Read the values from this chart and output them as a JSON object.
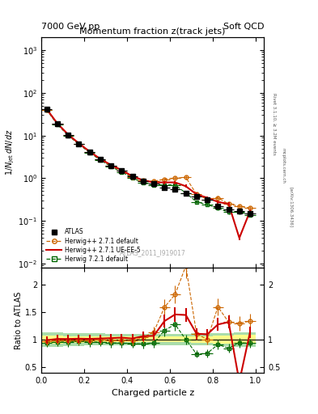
{
  "title_main": "Momentum fraction z(track jets)",
  "header_left": "7000 GeV pp",
  "header_right": "Soft QCD",
  "watermark": "ATLAS_2011_I919017",
  "ylabel_main": "1/N$_{jet}$ dN/dz",
  "ylabel_ratio": "Ratio to ATLAS",
  "xlabel": "Charged particle z",
  "right_label_top": "Rivet 3.1.10, ≥ 3.2M events",
  "right_label_bottom": "[arXiv:1306.3436]",
  "right_label_site": "mcplots.cern.ch",
  "ylim_main": [
    0.008,
    2000
  ],
  "ylim_ratio": [
    0.4,
    2.3
  ],
  "xlim": [
    0.0,
    1.04
  ],
  "atlas_x": [
    0.025,
    0.075,
    0.125,
    0.175,
    0.225,
    0.275,
    0.325,
    0.375,
    0.425,
    0.475,
    0.525,
    0.575,
    0.625,
    0.675,
    0.725,
    0.775,
    0.825,
    0.875,
    0.925,
    0.975
  ],
  "atlas_y": [
    42.0,
    19.0,
    10.5,
    6.5,
    4.2,
    2.8,
    2.0,
    1.5,
    1.1,
    0.85,
    0.75,
    0.6,
    0.55,
    0.45,
    0.38,
    0.32,
    0.22,
    0.19,
    0.17,
    0.15
  ],
  "atlas_yerr": [
    3.0,
    1.5,
    0.8,
    0.5,
    0.35,
    0.25,
    0.18,
    0.14,
    0.1,
    0.08,
    0.07,
    0.055,
    0.05,
    0.04,
    0.035,
    0.03,
    0.02,
    0.018,
    0.016,
    0.014
  ],
  "atlas_xerr": [
    0.025,
    0.025,
    0.025,
    0.025,
    0.025,
    0.025,
    0.025,
    0.025,
    0.025,
    0.025,
    0.025,
    0.025,
    0.025,
    0.025,
    0.025,
    0.025,
    0.025,
    0.025,
    0.025,
    0.025
  ],
  "hw271_x": [
    0.025,
    0.075,
    0.125,
    0.175,
    0.225,
    0.275,
    0.325,
    0.375,
    0.425,
    0.475,
    0.525,
    0.575,
    0.625,
    0.675,
    0.725,
    0.775,
    0.825,
    0.875,
    0.925,
    0.975
  ],
  "hw271_y": [
    40.5,
    18.8,
    10.3,
    6.4,
    4.15,
    2.78,
    1.98,
    1.48,
    1.08,
    0.88,
    0.85,
    0.95,
    1.0,
    1.05,
    0.42,
    0.32,
    0.35,
    0.25,
    0.22,
    0.2
  ],
  "hw271_yerr": [
    3.0,
    1.4,
    0.8,
    0.5,
    0.33,
    0.22,
    0.16,
    0.12,
    0.09,
    0.08,
    0.08,
    0.09,
    0.09,
    0.1,
    0.04,
    0.03,
    0.035,
    0.025,
    0.022,
    0.02
  ],
  "hw271ue_x": [
    0.025,
    0.075,
    0.125,
    0.175,
    0.225,
    0.275,
    0.325,
    0.375,
    0.425,
    0.475,
    0.525,
    0.575,
    0.625,
    0.675,
    0.725,
    0.775,
    0.825,
    0.875,
    0.925,
    0.975
  ],
  "hw271ue_y": [
    41.5,
    19.2,
    10.6,
    6.6,
    4.25,
    2.85,
    2.05,
    1.55,
    1.12,
    0.9,
    0.8,
    0.8,
    0.8,
    0.65,
    0.42,
    0.35,
    0.28,
    0.25,
    0.04,
    0.17
  ],
  "hw271ue_yerr": [
    2.8,
    1.3,
    0.75,
    0.45,
    0.32,
    0.21,
    0.15,
    0.11,
    0.085,
    0.075,
    0.065,
    0.07,
    0.07,
    0.055,
    0.038,
    0.032,
    0.026,
    0.022,
    0.004,
    0.016
  ],
  "hw721_x": [
    0.025,
    0.075,
    0.125,
    0.175,
    0.225,
    0.275,
    0.325,
    0.375,
    0.425,
    0.475,
    0.525,
    0.575,
    0.625,
    0.675,
    0.725,
    0.775,
    0.825,
    0.875,
    0.925,
    0.975
  ],
  "hw721_y": [
    39.5,
    18.2,
    10.0,
    6.3,
    4.0,
    2.68,
    1.88,
    1.4,
    1.02,
    0.78,
    0.7,
    0.7,
    0.7,
    0.45,
    0.28,
    0.24,
    0.2,
    0.16,
    0.16,
    0.14
  ],
  "hw721_yerr": [
    3.2,
    1.5,
    0.85,
    0.52,
    0.35,
    0.23,
    0.17,
    0.13,
    0.09,
    0.07,
    0.065,
    0.065,
    0.065,
    0.042,
    0.026,
    0.023,
    0.019,
    0.015,
    0.015,
    0.013
  ],
  "atlas_band_inner_y1": [
    0.93,
    0.93,
    0.94,
    0.94,
    0.95,
    0.95,
    0.95,
    0.95,
    0.95,
    0.95,
    0.95,
    0.95,
    0.95,
    0.95,
    0.94,
    0.94,
    0.93,
    0.93,
    0.92,
    0.92
  ],
  "atlas_band_inner_y2": [
    1.07,
    1.07,
    1.06,
    1.06,
    1.05,
    1.05,
    1.05,
    1.05,
    1.05,
    1.05,
    1.05,
    1.05,
    1.05,
    1.05,
    1.06,
    1.06,
    1.07,
    1.07,
    1.08,
    1.08
  ],
  "atlas_band_outer_y1": [
    0.87,
    0.87,
    0.88,
    0.88,
    0.89,
    0.89,
    0.9,
    0.9,
    0.9,
    0.9,
    0.9,
    0.9,
    0.9,
    0.9,
    0.89,
    0.89,
    0.88,
    0.88,
    0.87,
    0.87
  ],
  "atlas_band_outer_y2": [
    1.13,
    1.13,
    1.12,
    1.12,
    1.11,
    1.11,
    1.1,
    1.1,
    1.1,
    1.1,
    1.1,
    1.1,
    1.1,
    1.1,
    1.11,
    1.11,
    1.12,
    1.12,
    1.13,
    1.13
  ],
  "color_atlas": "#000000",
  "color_hw271": "#cc6600",
  "color_hw271ue": "#cc0000",
  "color_hw721": "#006600",
  "color_band_inner_ratio": "#ffff88",
  "color_band_outer_ratio": "#aaddaa"
}
